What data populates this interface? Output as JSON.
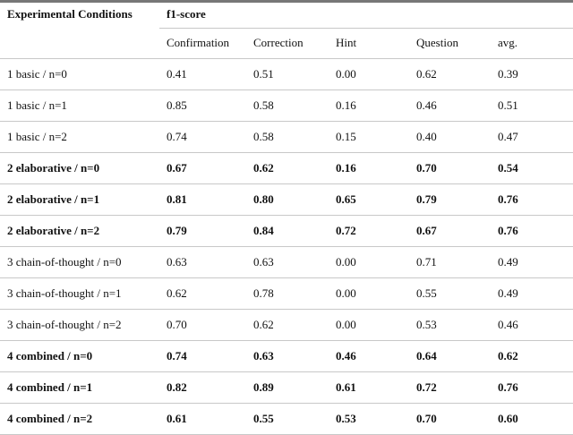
{
  "table": {
    "header": {
      "row_label": "Experimental Conditions",
      "group": "f1-score",
      "columns": [
        "Confirmation",
        "Correction",
        "Hint",
        "Question",
        "avg."
      ]
    },
    "rows": [
      {
        "cells": [
          "1 basic / n=0",
          "0.41",
          "0.51",
          "0.00",
          "0.62",
          "0.39"
        ],
        "bold": false
      },
      {
        "cells": [
          "1 basic / n=1",
          "0.85",
          "0.58",
          "0.16",
          "0.46",
          "0.51"
        ],
        "bold": false
      },
      {
        "cells": [
          "1 basic / n=2",
          "0.74",
          "0.58",
          "0.15",
          "0.40",
          "0.47"
        ],
        "bold": false
      },
      {
        "cells": [
          "2 elaborative / n=0",
          "0.67",
          "0.62",
          "0.16",
          "0.70",
          "0.54"
        ],
        "bold": true
      },
      {
        "cells": [
          "2 elaborative / n=1",
          "0.81",
          "0.80",
          "0.65",
          "0.79",
          "0.76"
        ],
        "bold": true
      },
      {
        "cells": [
          "2 elaborative / n=2",
          "0.79",
          "0.84",
          "0.72",
          "0.67",
          "0.76"
        ],
        "bold": true
      },
      {
        "cells": [
          "3 chain-of-thought / n=0",
          "0.63",
          "0.63",
          "0.00",
          "0.71",
          "0.49"
        ],
        "bold": false
      },
      {
        "cells": [
          "3 chain-of-thought / n=1",
          "0.62",
          "0.78",
          "0.00",
          "0.55",
          "0.49"
        ],
        "bold": false
      },
      {
        "cells": [
          "3 chain-of-thought / n=2",
          "0.70",
          "0.62",
          "0.00",
          "0.53",
          "0.46"
        ],
        "bold": false
      },
      {
        "cells": [
          "4 combined / n=0",
          "0.74",
          "0.63",
          "0.46",
          "0.64",
          "0.62"
        ],
        "bold": true
      },
      {
        "cells": [
          "4 combined / n=1",
          "0.82",
          "0.89",
          "0.61",
          "0.72",
          "0.76"
        ],
        "bold": true
      },
      {
        "cells": [
          "4 combined / n=2",
          "0.61",
          "0.55",
          "0.53",
          "0.70",
          "0.60"
        ],
        "bold": true
      }
    ]
  }
}
